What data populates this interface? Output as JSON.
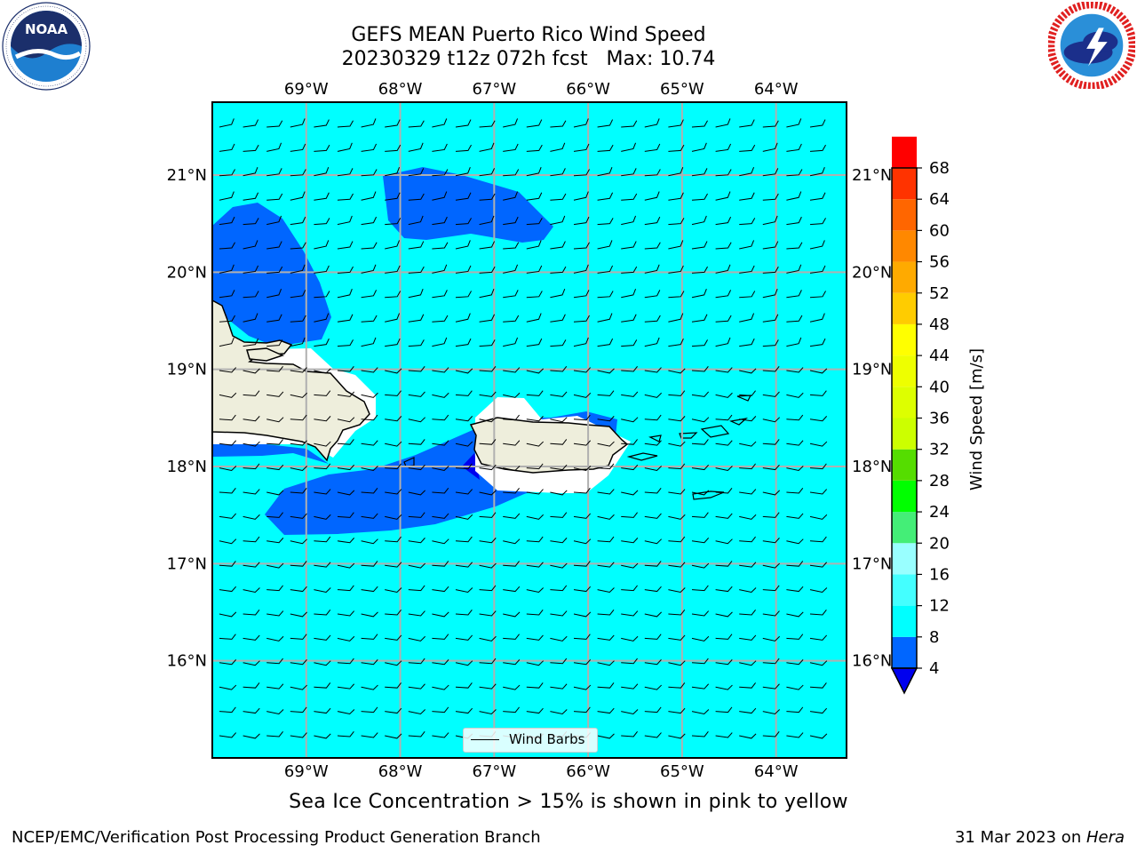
{
  "title": {
    "line1": "GEFS MEAN Puerto Rico Wind Speed",
    "line2": "20230329 t12z 072h fcst   Max: 10.74"
  },
  "logos": {
    "left": {
      "name": "noaa-logo",
      "text": "NOAA",
      "ring_text": "NATIONAL OCEANIC AND ATMOSPHERIC ADMINISTRATION · U.S. DEPARTMENT OF COMMERCE"
    },
    "right": {
      "name": "nws-logo",
      "ring_text": "NATIONAL WEATHER SERVICE"
    }
  },
  "map": {
    "lon_range": [
      -70,
      -63.25
    ],
    "lat_range": [
      15.0,
      21.75
    ],
    "lon_ticks": [
      {
        "value": -69,
        "label": "69°W"
      },
      {
        "value": -68,
        "label": "68°W"
      },
      {
        "value": -67,
        "label": "67°W"
      },
      {
        "value": -66,
        "label": "66°W"
      },
      {
        "value": -65,
        "label": "65°W"
      },
      {
        "value": -64,
        "label": "64°W"
      }
    ],
    "lat_ticks": [
      {
        "value": 21,
        "label": "21°N"
      },
      {
        "value": 20,
        "label": "20°N"
      },
      {
        "value": 19,
        "label": "19°N"
      },
      {
        "value": 18,
        "label": "18°N"
      },
      {
        "value": 17,
        "label": "17°N"
      },
      {
        "value": 16,
        "label": "16°N"
      }
    ],
    "grid": true,
    "background_color": "#00ffff",
    "land_color": "#eeeedc",
    "legend_label": "Wind Barbs",
    "legend_placement": "bottom-center"
  },
  "colorbar": {
    "label": "Wind Speed [m/s]",
    "levels": [
      4,
      8,
      12,
      16,
      20,
      24,
      28,
      32,
      36,
      40,
      44,
      48,
      52,
      56,
      60,
      64,
      68
    ],
    "colors": [
      "#0066ff",
      "#00ffff",
      "#44ffff",
      "#99ffff",
      "#44ee77",
      "#00ff00",
      "#55dd00",
      "#ccff00",
      "#ddff00",
      "#eeff00",
      "#ffff00",
      "#ffcc00",
      "#ffaa00",
      "#ff8800",
      "#ff6600",
      "#ff3300",
      "#ff0000"
    ],
    "extend_min_color": "#0000ee"
  },
  "caption": "Sea Ice Concentration > 15% is shown in pink to yellow",
  "footer": {
    "left": "NCEP/EMC/Verification Post Processing Product Generation Branch",
    "right_date": "31 Mar 2023 on ",
    "right_host": "Hera"
  }
}
